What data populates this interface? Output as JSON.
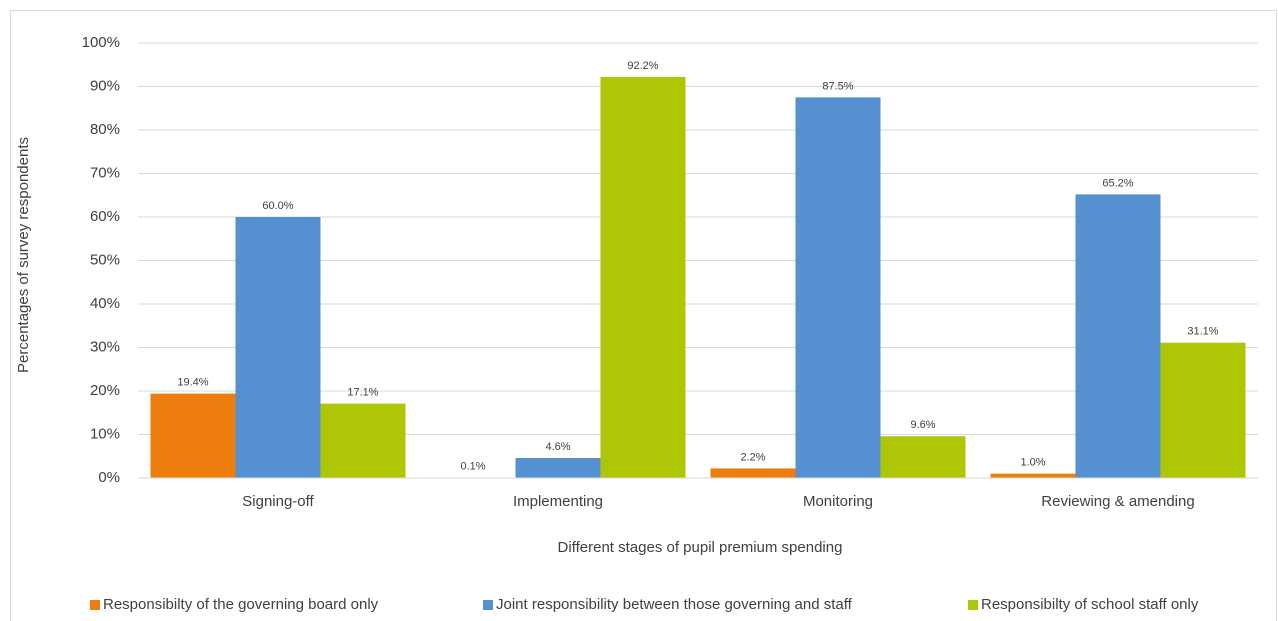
{
  "chart_data": {
    "type": "bar",
    "x_label": "Different stages of pupil premium spending",
    "y_label": "Percentages of survey respondents",
    "categories": [
      "Signing-off",
      "Implementing",
      "Monitoring",
      "Reviewing & amending"
    ],
    "series": [
      {
        "name": "Responsibilty of the governing board only",
        "color": "#ed7d0c",
        "values": [
          19.4,
          0.1,
          2.2,
          1.0
        ],
        "value_labels": [
          "19.4%",
          "0.1%",
          "2.2%",
          "1.0%"
        ]
      },
      {
        "name": "Joint responsibility between those governing and staff",
        "color": "#5591d0",
        "values": [
          60.0,
          4.6,
          87.5,
          65.2
        ],
        "value_labels": [
          "60.0%",
          "4.6%",
          "87.5%",
          "65.2%"
        ]
      },
      {
        "name": "Responsibilty of school staff only",
        "color": "#aec605",
        "values": [
          17.1,
          92.2,
          9.6,
          31.1
        ],
        "value_labels": [
          "17.1%",
          "92.2%",
          "9.6%",
          "31.1%"
        ]
      }
    ],
    "ylim": [
      0,
      100
    ],
    "yticks": [
      {
        "value": 0,
        "label": "0%"
      },
      {
        "value": 10,
        "label": "10%"
      },
      {
        "value": 20,
        "label": "20%"
      },
      {
        "value": 30,
        "label": "30%"
      },
      {
        "value": 40,
        "label": "40%"
      },
      {
        "value": 50,
        "label": "50%"
      },
      {
        "value": 60,
        "label": "60%"
      },
      {
        "value": 70,
        "label": "70%"
      },
      {
        "value": 80,
        "label": "80%"
      },
      {
        "value": 90,
        "label": "90%"
      },
      {
        "value": 100,
        "label": "100%"
      }
    ],
    "grid": true,
    "legend": "bottom"
  }
}
